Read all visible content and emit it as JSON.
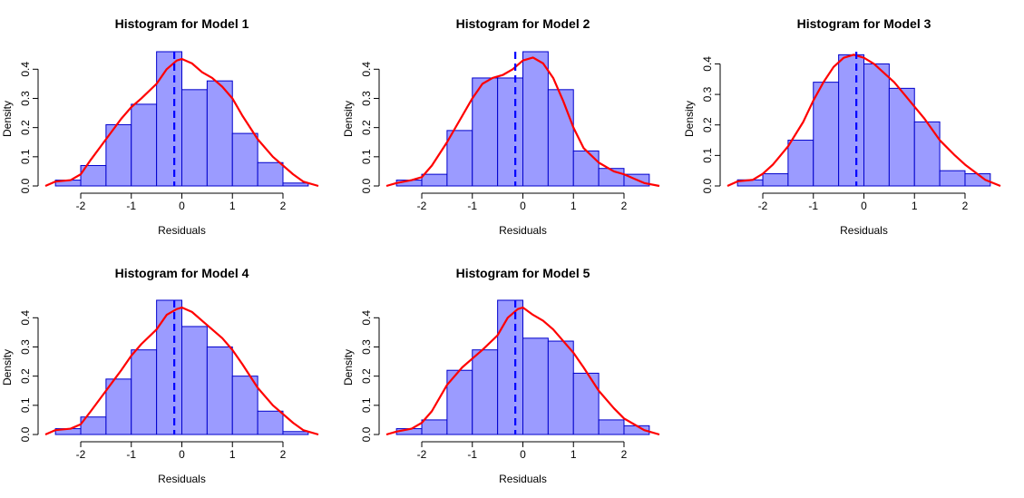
{
  "chart_data": [
    {
      "type": "histogram",
      "title": "Histogram for Model 1",
      "xlabel": "Residuals",
      "ylabel": "Density",
      "xlim": [
        -2.7,
        2.7
      ],
      "ylim": [
        0,
        0.46
      ],
      "xticks": [
        -2,
        -1,
        0,
        1,
        2
      ],
      "yticks": [
        0.0,
        0.1,
        0.2,
        0.3,
        0.4
      ],
      "bins": [
        -2.5,
        -2.0,
        -1.5,
        -1.0,
        -0.5,
        0.0,
        0.5,
        1.0,
        1.5,
        2.0,
        2.5
      ],
      "density": [
        0.02,
        0.07,
        0.21,
        0.28,
        0.46,
        0.33,
        0.36,
        0.18,
        0.08,
        0.01
      ],
      "mean_line": -0.15,
      "density_curve": {
        "x": [
          -2.7,
          -2.5,
          -2.2,
          -2.0,
          -1.8,
          -1.5,
          -1.2,
          -1.0,
          -0.8,
          -0.5,
          -0.3,
          -0.1,
          0.0,
          0.2,
          0.4,
          0.6,
          0.8,
          1.0,
          1.2,
          1.5,
          1.8,
          2.0,
          2.2,
          2.4,
          2.7
        ],
        "y": [
          0.0,
          0.015,
          0.02,
          0.04,
          0.09,
          0.16,
          0.23,
          0.27,
          0.3,
          0.35,
          0.4,
          0.43,
          0.435,
          0.42,
          0.39,
          0.37,
          0.34,
          0.3,
          0.24,
          0.16,
          0.1,
          0.07,
          0.04,
          0.015,
          0.0
        ]
      },
      "colors": {
        "bar_fill": "#9b9bff",
        "bar_stroke": "#0000cc",
        "curve": "#ff0000",
        "mean_line": "#0000ff"
      }
    },
    {
      "type": "histogram",
      "title": "Histogram for Model 2",
      "xlabel": "Residuals",
      "ylabel": "Density",
      "xlim": [
        -2.7,
        2.7
      ],
      "ylim": [
        0,
        0.46
      ],
      "xticks": [
        -2,
        -1,
        0,
        1,
        2
      ],
      "yticks": [
        0.0,
        0.1,
        0.2,
        0.3,
        0.4
      ],
      "bins": [
        -2.5,
        -2.0,
        -1.5,
        -1.0,
        -0.5,
        0.0,
        0.5,
        1.0,
        1.5,
        2.0,
        2.5
      ],
      "density": [
        0.02,
        0.04,
        0.19,
        0.37,
        0.37,
        0.46,
        0.33,
        0.12,
        0.06,
        0.04
      ],
      "mean_line": -0.15,
      "density_curve": {
        "x": [
          -2.7,
          -2.5,
          -2.2,
          -2.0,
          -1.8,
          -1.5,
          -1.2,
          -1.0,
          -0.8,
          -0.6,
          -0.4,
          -0.2,
          0.0,
          0.2,
          0.4,
          0.6,
          0.8,
          1.0,
          1.2,
          1.5,
          1.8,
          2.0,
          2.2,
          2.4,
          2.7
        ],
        "y": [
          0.0,
          0.01,
          0.02,
          0.03,
          0.07,
          0.15,
          0.24,
          0.3,
          0.35,
          0.37,
          0.38,
          0.4,
          0.43,
          0.44,
          0.42,
          0.37,
          0.29,
          0.2,
          0.13,
          0.08,
          0.05,
          0.04,
          0.025,
          0.01,
          0.0
        ]
      },
      "colors": {
        "bar_fill": "#9b9bff",
        "bar_stroke": "#0000cc",
        "curve": "#ff0000",
        "mean_line": "#0000ff"
      }
    },
    {
      "type": "histogram",
      "title": "Histogram for Model 3",
      "xlabel": "Residuals",
      "ylabel": "Density",
      "xlim": [
        -2.7,
        2.7
      ],
      "ylim": [
        0,
        0.44
      ],
      "xticks": [
        -2,
        -1,
        0,
        1,
        2
      ],
      "yticks": [
        0.0,
        0.1,
        0.2,
        0.3,
        0.4
      ],
      "bins": [
        -2.5,
        -2.0,
        -1.5,
        -1.0,
        -0.5,
        0.0,
        0.5,
        1.0,
        1.5,
        2.0,
        2.5
      ],
      "density": [
        0.02,
        0.04,
        0.15,
        0.34,
        0.43,
        0.4,
        0.32,
        0.21,
        0.05,
        0.04
      ],
      "mean_line": -0.15,
      "density_curve": {
        "x": [
          -2.7,
          -2.5,
          -2.2,
          -2.0,
          -1.8,
          -1.5,
          -1.2,
          -1.0,
          -0.8,
          -0.6,
          -0.4,
          -0.2,
          0.0,
          0.2,
          0.4,
          0.6,
          0.8,
          1.0,
          1.2,
          1.5,
          1.8,
          2.0,
          2.2,
          2.4,
          2.7
        ],
        "y": [
          0.0,
          0.015,
          0.02,
          0.04,
          0.07,
          0.13,
          0.21,
          0.28,
          0.34,
          0.39,
          0.42,
          0.43,
          0.42,
          0.4,
          0.37,
          0.34,
          0.3,
          0.26,
          0.22,
          0.15,
          0.1,
          0.07,
          0.045,
          0.02,
          0.0
        ]
      },
      "colors": {
        "bar_fill": "#9b9bff",
        "bar_stroke": "#0000cc",
        "curve": "#ff0000",
        "mean_line": "#0000ff"
      }
    },
    {
      "type": "histogram",
      "title": "Histogram for Model 4",
      "xlabel": "Residuals",
      "ylabel": "Density",
      "xlim": [
        -2.7,
        2.7
      ],
      "ylim": [
        0,
        0.46
      ],
      "xticks": [
        -2,
        -1,
        0,
        1,
        2
      ],
      "yticks": [
        0.0,
        0.1,
        0.2,
        0.3,
        0.4
      ],
      "bins": [
        -2.5,
        -2.0,
        -1.5,
        -1.0,
        -0.5,
        0.0,
        0.5,
        1.0,
        1.5,
        2.0,
        2.5
      ],
      "density": [
        0.02,
        0.06,
        0.19,
        0.29,
        0.46,
        0.37,
        0.3,
        0.2,
        0.08,
        0.01
      ],
      "mean_line": -0.15,
      "density_curve": {
        "x": [
          -2.7,
          -2.5,
          -2.2,
          -2.0,
          -1.8,
          -1.5,
          -1.2,
          -1.0,
          -0.8,
          -0.5,
          -0.3,
          -0.1,
          0.0,
          0.2,
          0.4,
          0.6,
          0.8,
          1.0,
          1.2,
          1.5,
          1.8,
          2.0,
          2.2,
          2.4,
          2.7
        ],
        "y": [
          0.0,
          0.015,
          0.02,
          0.035,
          0.08,
          0.15,
          0.22,
          0.27,
          0.31,
          0.36,
          0.41,
          0.43,
          0.435,
          0.42,
          0.39,
          0.36,
          0.33,
          0.29,
          0.24,
          0.16,
          0.1,
          0.07,
          0.04,
          0.015,
          0.0
        ]
      },
      "colors": {
        "bar_fill": "#9b9bff",
        "bar_stroke": "#0000cc",
        "curve": "#ff0000",
        "mean_line": "#0000ff"
      }
    },
    {
      "type": "histogram",
      "title": "Histogram for Model 5",
      "xlabel": "Residuals",
      "ylabel": "Density",
      "xlim": [
        -2.7,
        2.7
      ],
      "ylim": [
        0,
        0.46
      ],
      "xticks": [
        -2,
        -1,
        0,
        1,
        2
      ],
      "yticks": [
        0.0,
        0.1,
        0.2,
        0.3,
        0.4
      ],
      "bins": [
        -2.5,
        -2.0,
        -1.5,
        -1.0,
        -0.5,
        0.0,
        0.5,
        1.0,
        1.5,
        2.0,
        2.5
      ],
      "density": [
        0.02,
        0.05,
        0.22,
        0.29,
        0.46,
        0.33,
        0.32,
        0.21,
        0.05,
        0.03
      ],
      "mean_line": -0.15,
      "density_curve": {
        "x": [
          -2.7,
          -2.5,
          -2.2,
          -2.0,
          -1.8,
          -1.5,
          -1.2,
          -1.0,
          -0.8,
          -0.5,
          -0.3,
          -0.1,
          0.0,
          0.2,
          0.4,
          0.6,
          0.8,
          1.0,
          1.2,
          1.5,
          1.8,
          2.0,
          2.2,
          2.4,
          2.7
        ],
        "y": [
          0.0,
          0.01,
          0.02,
          0.04,
          0.08,
          0.17,
          0.23,
          0.26,
          0.29,
          0.34,
          0.4,
          0.43,
          0.435,
          0.41,
          0.39,
          0.36,
          0.32,
          0.28,
          0.23,
          0.15,
          0.09,
          0.055,
          0.035,
          0.015,
          0.0
        ]
      },
      "colors": {
        "bar_fill": "#9b9bff",
        "bar_stroke": "#0000cc",
        "curve": "#ff0000",
        "mean_line": "#0000ff"
      }
    }
  ]
}
